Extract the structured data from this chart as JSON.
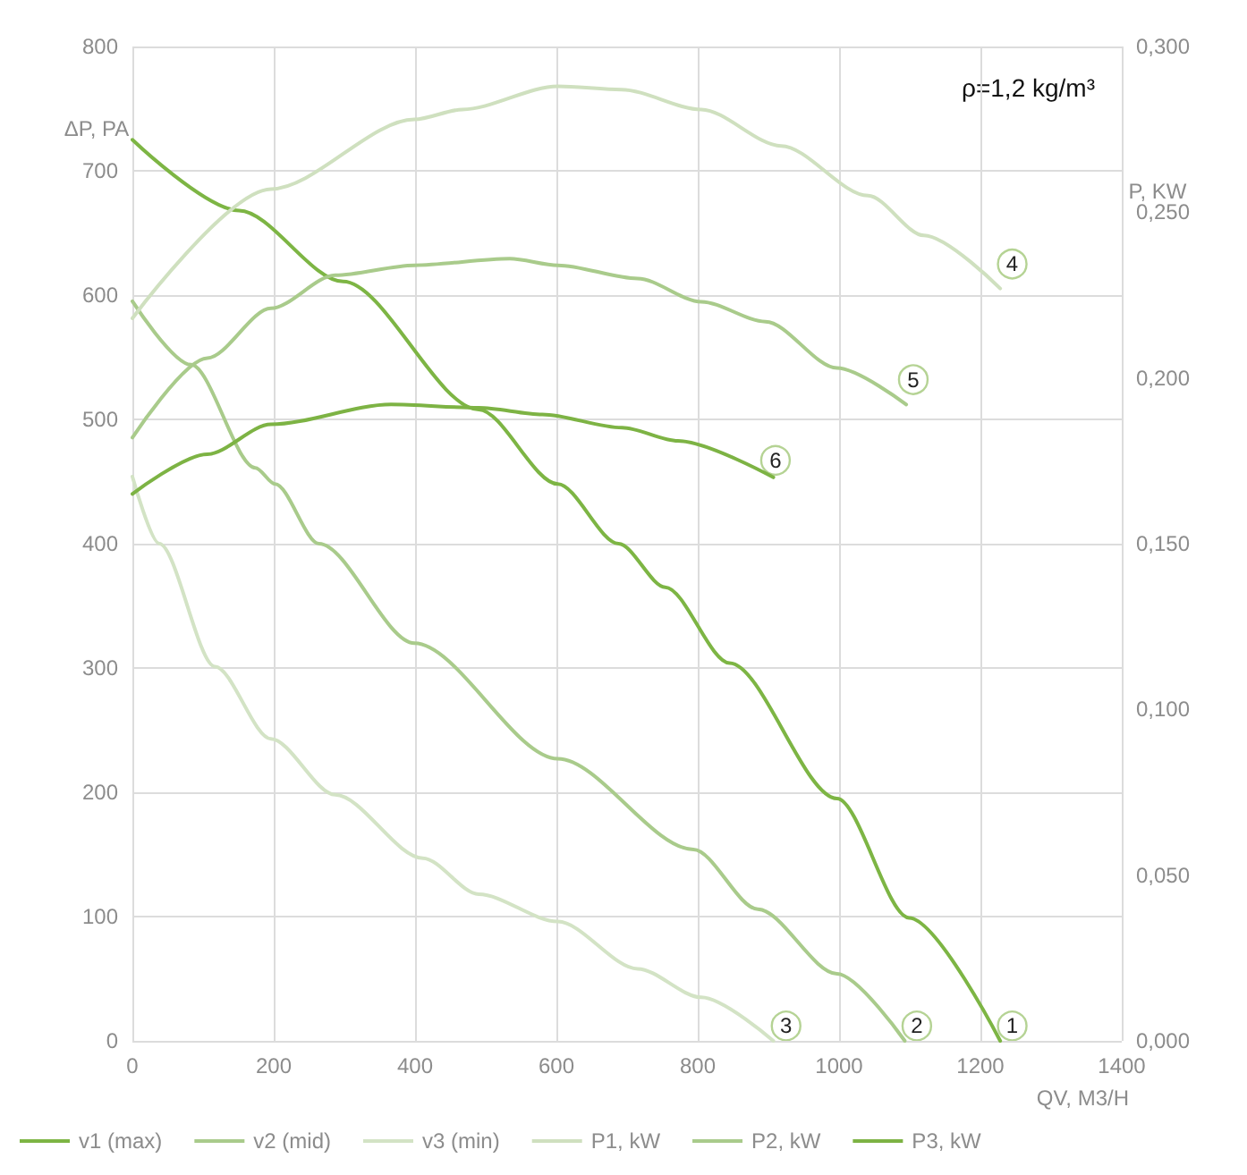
{
  "chart_data": {
    "type": "line",
    "xlabel": "QV, M3/H",
    "ylabel": "ΔP, PA",
    "y2label": "P, KW",
    "xlim": [
      0,
      1400
    ],
    "xticks": [
      0,
      200,
      400,
      600,
      800,
      1000,
      1200,
      1400
    ],
    "ylim": [
      0,
      800
    ],
    "yticks": [
      0,
      100,
      200,
      300,
      400,
      500,
      600,
      700,
      800
    ],
    "y2lim": [
      0,
      0.3
    ],
    "y2ticks": [
      {
        "value": 0,
        "label": "0,000"
      },
      {
        "value": 0.05,
        "label": "0,050"
      },
      {
        "value": 0.1,
        "label": "0,100"
      },
      {
        "value": 0.15,
        "label": "0,150"
      },
      {
        "value": 0.2,
        "label": "0,200"
      },
      {
        "value": 0.25,
        "label": "0,250"
      },
      {
        "value": 0.3,
        "label": "0,300"
      }
    ],
    "grid": true,
    "legend": "bottom",
    "marker": "none",
    "line_style": "solid",
    "series": [
      {
        "name": "v1 (max)",
        "color": "#7db544",
        "x": [
          0,
          151,
          298,
          490,
          602,
          688,
          754,
          845,
          997,
          1099,
          1228
        ],
        "values": [
          725,
          668,
          611,
          508,
          448,
          400,
          365,
          304,
          195,
          99,
          0
        ]
      },
      {
        "name": "v2 (mid)",
        "color": "#a9cb8b",
        "x": [
          0,
          83,
          174,
          202,
          264,
          399,
          602,
          794,
          885,
          997,
          1093
        ],
        "values": [
          595,
          544,
          461,
          448,
          400,
          320,
          227,
          154,
          106,
          54,
          0
        ]
      },
      {
        "name": "v3 (min)",
        "color": "#d3e3c5",
        "x": [
          0,
          38,
          117,
          196,
          287,
          411,
          490,
          602,
          715,
          805,
          907
        ],
        "values": [
          454,
          400,
          301,
          243,
          198,
          147,
          118,
          96,
          58,
          35,
          0
        ]
      },
      {
        "name": "P1, kW",
        "color": "#cfe0bf",
        "axis": "y2",
        "x": [
          0,
          196,
          399,
          467,
          602,
          692,
          805,
          918,
          1041,
          1120,
          1228
        ],
        "values": [
          0.218,
          0.257,
          0.278,
          0.281,
          0.288,
          0.287,
          0.281,
          0.27,
          0.255,
          0.243,
          0.227
        ]
      },
      {
        "name": "P2, kW",
        "color": "#a9cb8b",
        "axis": "y2",
        "x": [
          0,
          106,
          196,
          287,
          399,
          534,
          602,
          715,
          805,
          896,
          997,
          1095
        ],
        "values": [
          0.182,
          0.206,
          0.221,
          0.231,
          0.234,
          0.236,
          0.234,
          0.23,
          0.223,
          0.217,
          0.203,
          0.192
        ]
      },
      {
        "name": "P3, kW",
        "color": "#7db344",
        "axis": "y2",
        "x": [
          0,
          106,
          196,
          366,
          490,
          580,
          693,
          772,
          907
        ],
        "values": [
          0.165,
          0.177,
          0.186,
          0.192,
          0.191,
          0.189,
          0.185,
          0.181,
          0.17
        ]
      }
    ],
    "annotations": [
      {
        "text": "1",
        "x": 1245,
        "y": 12
      },
      {
        "text": "2",
        "x": 1110,
        "y": 12
      },
      {
        "text": "3",
        "x": 925,
        "y": 12
      },
      {
        "text": "4",
        "x": 1245,
        "y": 625
      },
      {
        "text": "5",
        "x": 1105,
        "y": 532
      },
      {
        "text": "6",
        "x": 910,
        "y": 467
      },
      "ρ=1,2 kg/m³"
    ]
  }
}
